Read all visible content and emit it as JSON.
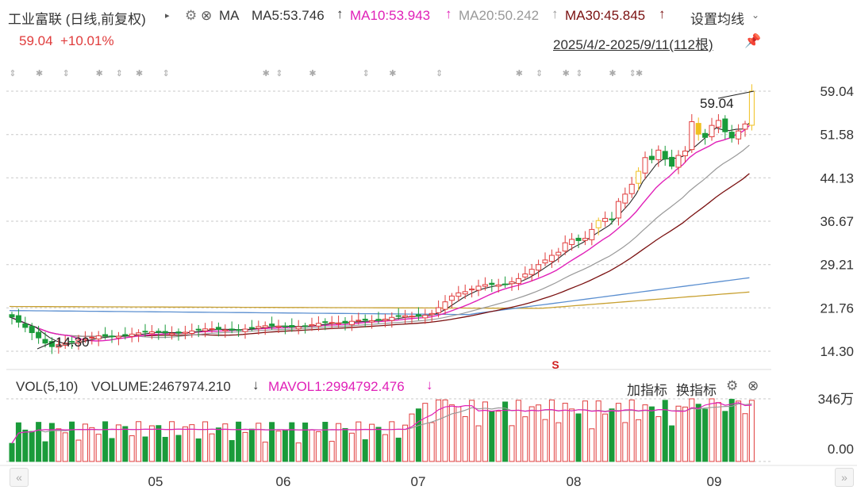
{
  "header": {
    "stock_title": "工业富联 (日线,前复权)",
    "ma_label": "MA",
    "ma5": "MA5:53.746",
    "ma10": "MA10:53.943",
    "ma20": "MA20:50.242",
    "ma30": "MA30:45.845",
    "up_arrow": "↑",
    "settings_label": "设置均线",
    "chevron_icon": "chevron-down-icon"
  },
  "quote": {
    "price": "59.04",
    "change": "+10.01%",
    "range": "2025/4/2-2025/9/11(112根)"
  },
  "colors": {
    "up": "#e03c3c",
    "down": "#1a9b3a",
    "ma5": "#2a2a2a",
    "ma10": "#e020b8",
    "ma20": "#999999",
    "ma30": "#7a1010",
    "ma60": "#5b8fd0",
    "ma120": "#c8a030",
    "limit_up": "#f0c020"
  },
  "volume_header": {
    "vol_label": "VOL(5,10)",
    "volume": "VOLUME:2467974.210",
    "down_arrow": "↓",
    "mavol": "MAVOL1:2994792.476",
    "add_indicator": "加指标",
    "switch_indicator": "换指标"
  },
  "chart_data": {
    "type": "candlestick",
    "price_axis_ticks": [
      "59.04",
      "51.58",
      "44.13",
      "36.67",
      "29.21",
      "21.76",
      "14.30"
    ],
    "price_range": [
      14.3,
      59.04
    ],
    "volume_axis_ticks": [
      "346万",
      "0.00"
    ],
    "x_tick_labels": [
      "05",
      "06",
      "07",
      "08",
      "09"
    ],
    "annotations": {
      "high_label": "59.04",
      "low_label": "14.30",
      "event_marker": "S"
    },
    "series_names": [
      "MA5",
      "MA10",
      "MA20",
      "MA30"
    ],
    "ma5_end": 53.746,
    "ma10_end": 53.943,
    "ma20_end": 50.242,
    "ma30_end": 45.845,
    "last_close": 59.04,
    "last_change_pct": 10.01,
    "bar_count": 112,
    "last_volume": 2467974.21,
    "last_mavol1": 2994792.476
  }
}
